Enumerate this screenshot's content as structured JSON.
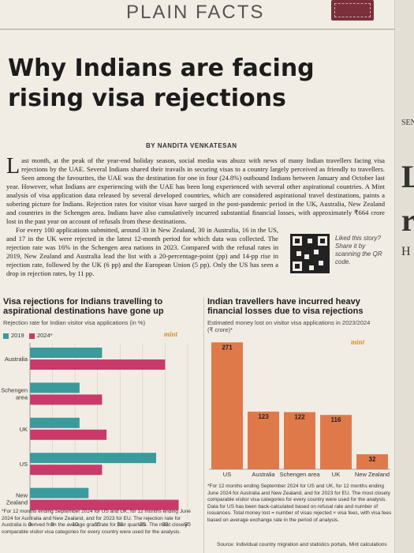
{
  "header": {
    "section": "PLAIN FACTS"
  },
  "article": {
    "headline_line1": "Why Indians are facing",
    "headline_line2": "rising visa rejections",
    "byline": "BY NANDITA VENKATESAN",
    "dropcap": "L",
    "para1": "ast month, at the peak of the year-end holiday season, social media was abuzz with news of many Indian travellers facing visa rejections by the UAE. Several Indians shared their travails in securing visas to a country largely perceived as friendly to travellers. Seen among the favourites, the UAE was the destination for one in four (24.8%) outbound Indians between January and October last year. However, what Indians are experiencing with the UAE has been long experienced with several other aspirational countries. A Mint analysis of visa application data released by several developed countries, which are considered aspirational travel destinations, paints a sobering picture for Indians. Rejection rates for visitor visas have surged in the post-pandemic period in the UK, Australia, New Zealand and countries in the Schengen area. Indians have also cumulatively incurred substantial financial losses, with approximately ₹664 crore lost in the past year on account of refusals from these destinations.",
    "para2": "For every 100 applications submitted, around 33 in New Zealand, 30 in Australia, 16 in the US, and 17 in the UK were rejected in the latest 12-month period for which data was collected. The rejection rate was 16% in the Schengen area nations in 2023. Compared with the refusal rates in 2019, New Zealand and Australia lead the list with a 20-percentage-point (pp) and 14-pp rise in rejection rate, followed by the UK (6 pp) and the European Union (5 pp). Only the US has seen a drop in rejection rates, by 11 pp.",
    "qr_caption": "Liked this story? Share it by scanning the QR code."
  },
  "chart1": {
    "title_line1": "Visa rejections for Indians travelling to",
    "title_line2": "aspirational destinations have gone up",
    "subtitle": "Rejection rate for Indian visitor visa applications (in %)",
    "brand": "mint",
    "note": "*For 12 months ending September 2024 for US and UK, for 12 months ending June 2024 for Australia and New Zealand, and for 2023 for EU. The rejection rate for Australia is derived from the average grant rate for four quarters. The most closely comparable visitor visa categories for every country were used for the analysis."
  },
  "chart2": {
    "title_line1": "Indian travellers have incurred heavy",
    "title_line2": "financial losses due to visa rejections",
    "subtitle_line1": "Estimated money lost on visitor visa applications in 2023/2024",
    "subtitle_line2": "(₹ crore)*",
    "brand": "mint",
    "note": "*For 12 months ending September 2024 for US and UK, for 12 months ending June 2024 for Australia and New Zealand, and for 2023 for EU. The most closely comparable visitor visa categories for every country were used for the analysis. Data for US has been back-calculated based on refusal rate and number of issuances. Total money lost = number of visas rejected × visa fees, with visa fees based on average exchange rate in the period of analysis.",
    "source": "Source: Individual country migration and statistics portals, Mint calculations"
  },
  "colors": {
    "series_2019": "#3a9a9c",
    "series_2024": "#c93a6a",
    "bar_loss": "#e0794a",
    "brand": "#d7901f"
  },
  "chart_data": [
    {
      "type": "bar",
      "orientation": "horizontal",
      "categories": [
        "Australia",
        "Schengen area",
        "UK",
        "US",
        "New Zealand"
      ],
      "series": [
        {
          "name": "2019",
          "values": [
            16,
            11,
            11,
            28,
            13
          ]
        },
        {
          "name": "2024*",
          "values": [
            30,
            16,
            17,
            16,
            33
          ]
        }
      ],
      "xlim": [
        0,
        35
      ],
      "xticks": [
        0,
        5,
        10,
        15,
        20,
        25,
        30,
        35
      ],
      "legend": "top-left"
    },
    {
      "type": "bar",
      "categories": [
        "US",
        "Australia",
        "Schengen area",
        "UK",
        "New Zealand"
      ],
      "values": [
        271,
        123,
        122,
        116,
        32
      ],
      "ylim": [
        0,
        280
      ]
    }
  ]
}
